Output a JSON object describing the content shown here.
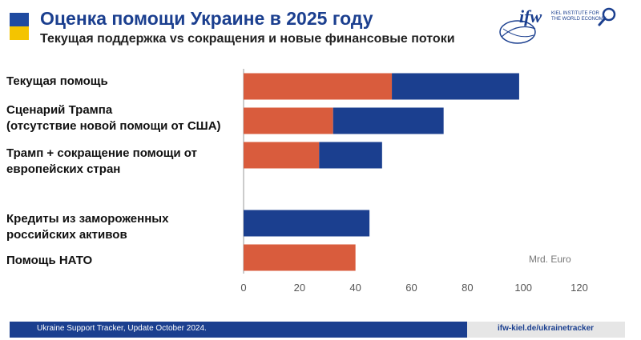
{
  "header": {
    "title": "Оценка помощи Украине в 2025 году",
    "subtitle": "Текущая поддержка vs сокращения и новые финансовые потоки"
  },
  "logo": {
    "text": "ifw",
    "institute": "KIEL INSTITUTE FOR THE WORLD ECONOMY"
  },
  "colors": {
    "orange": "#d95c3d",
    "blue": "#1b3f8f",
    "flag_blue": "#1f4aa0",
    "flag_yellow": "#f4c400"
  },
  "chart_data": {
    "type": "bar",
    "orientation": "horizontal",
    "stacked": true,
    "categories": [
      "Текущая помощь",
      "Сценарий Трампа (отсутствие новой помощи от США)",
      "Трамп + сокращение помощи от европейских стран",
      "Кредиты из замороженных российских активов",
      "Помощь НАТО"
    ],
    "series": [
      {
        "color": "#d95c3d",
        "values": [
          53,
          32,
          27,
          0,
          40
        ]
      },
      {
        "color": "#1b3f8f",
        "values": [
          45.5,
          39.5,
          22.5,
          45,
          0
        ]
      }
    ],
    "xlim": [
      0,
      120
    ],
    "xticks": [
      "0",
      "20",
      "40",
      "60",
      "80",
      "100",
      "120"
    ],
    "unit_label": "Mrd. Euro",
    "grid": false
  },
  "labels": {
    "row0": [
      "Текущая помощь"
    ],
    "row1": [
      "Сценарий Трампа",
      "(отсутствие новой помощи от США)"
    ],
    "row2": [
      "Трамп + сокращение помощи от",
      "европейских стран"
    ],
    "row3": [
      "Кредиты из замороженных",
      "российских активов"
    ],
    "row4": [
      "Помощь НАТО"
    ]
  },
  "footer": {
    "left": "Ukraine Support Tracker, Update October 2024.",
    "right": "ifw-kiel.de/ukrainetracker"
  }
}
